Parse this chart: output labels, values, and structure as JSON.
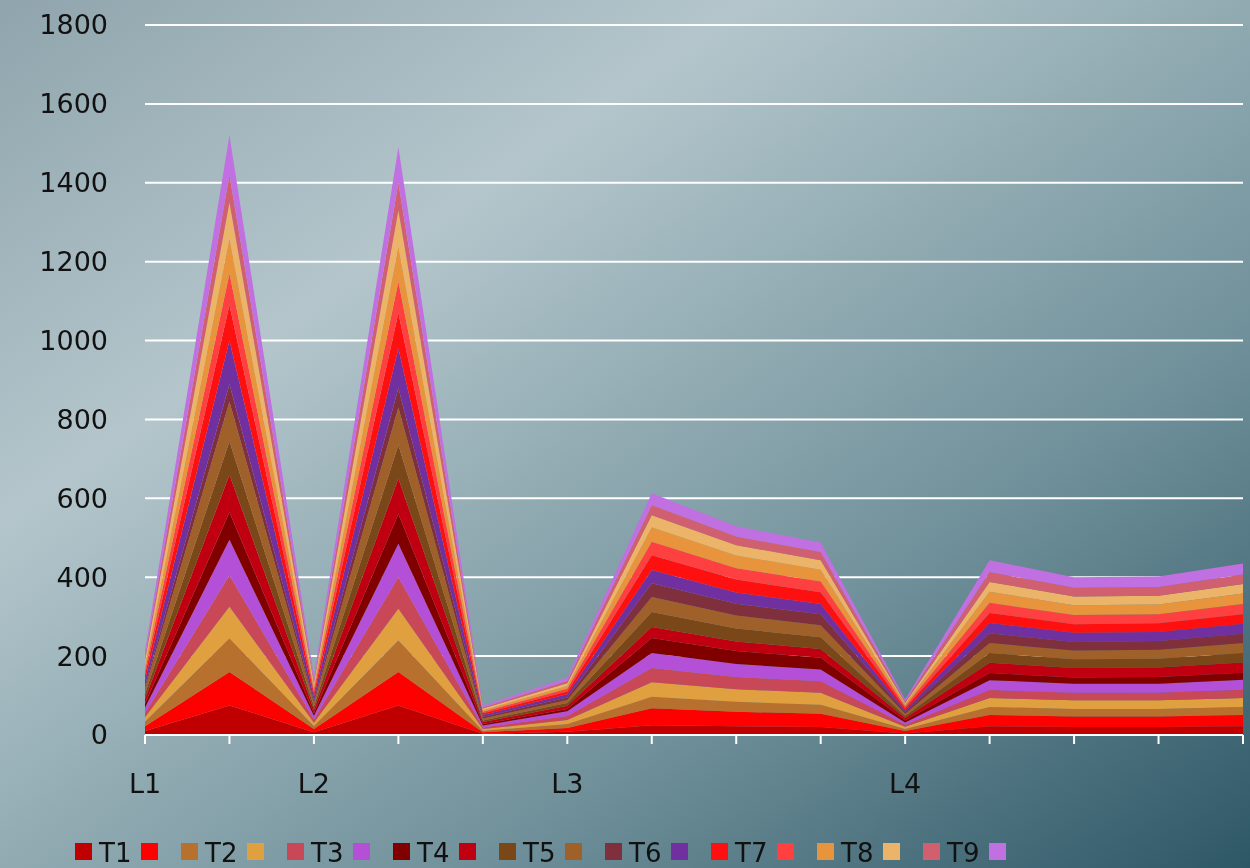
{
  "chart_data": {
    "type": "area",
    "stacked": true,
    "categories": [
      "L1",
      null,
      "L2",
      null,
      null,
      "L3",
      null,
      null,
      null,
      "L4",
      null,
      null,
      null,
      null
    ],
    "ylim": [
      0,
      1800
    ],
    "yticks": [
      0,
      200,
      400,
      600,
      800,
      1000,
      1200,
      1400,
      1600,
      1800
    ],
    "grid": "y",
    "legend": "bottom",
    "series": [
      {
        "name": "T1",
        "color": "#c00000",
        "values": [
          10,
          75,
          7,
          75,
          3,
          8,
          25,
          22,
          20,
          4,
          22,
          20,
          20,
          22
        ]
      },
      {
        "color": "#ff0000",
        "values": [
          12,
          85,
          8,
          85,
          4,
          10,
          43,
          37,
          34,
          6,
          29,
          27,
          27,
          29
        ]
      },
      {
        "name": "T2",
        "color": "#b8702e",
        "values": [
          12,
          85,
          8,
          80,
          4,
          10,
          29,
          25,
          23,
          5,
          20,
          19,
          19,
          20
        ]
      },
      {
        "color": "#e0a040",
        "values": [
          11,
          80,
          8,
          80,
          4,
          10,
          37,
          32,
          30,
          6,
          23,
          22,
          22,
          23
        ]
      },
      {
        "name": "T3",
        "color": "#c84858",
        "values": [
          11,
          80,
          8,
          80,
          4,
          10,
          36,
          31,
          29,
          5,
          20,
          19,
          19,
          21
        ]
      },
      {
        "color": "#b450d8",
        "values": [
          13,
          90,
          9,
          85,
          5,
          12,
          38,
          33,
          30,
          6,
          25,
          23,
          23,
          25
        ]
      },
      {
        "name": "T4",
        "color": "#800000",
        "values": [
          10,
          70,
          7,
          75,
          4,
          6,
          38,
          33,
          30,
          5,
          18,
          16,
          17,
          18
        ]
      },
      {
        "color": "#c00010",
        "values": [
          13,
          95,
          9,
          90,
          5,
          8,
          28,
          24,
          22,
          6,
          26,
          24,
          24,
          26
        ]
      },
      {
        "name": "T5",
        "color": "#7a4818",
        "values": [
          12,
          85,
          8,
          85,
          4,
          7,
          38,
          33,
          30,
          5,
          25,
          22,
          22,
          24
        ]
      },
      {
        "color": "#a0602a",
        "values": [
          14,
          100,
          10,
          95,
          5,
          8,
          38,
          33,
          30,
          6,
          25,
          22,
          23,
          25
        ]
      },
      {
        "name": "T6",
        "color": "#80303c",
        "values": [
          6,
          45,
          5,
          50,
          4,
          6,
          35,
          30,
          28,
          4,
          25,
          22,
          22,
          24
        ]
      },
      {
        "color": "#7030a0",
        "values": [
          15,
          110,
          10,
          100,
          5,
          8,
          33,
          28,
          26,
          5,
          26,
          23,
          23,
          25
        ]
      },
      {
        "name": "T7",
        "color": "#ff1010",
        "values": [
          13,
          90,
          9,
          90,
          4,
          7,
          38,
          33,
          30,
          5,
          25,
          22,
          22,
          24
        ]
      },
      {
        "color": "#ff4040",
        "values": [
          11,
          80,
          8,
          80,
          4,
          7,
          34,
          29,
          27,
          5,
          26,
          23,
          23,
          26
        ]
      },
      {
        "name": "T8",
        "color": "#e8943c",
        "values": [
          13,
          90,
          9,
          90,
          4,
          7,
          37,
          32,
          30,
          5,
          28,
          25,
          25,
          27
        ]
      },
      {
        "color": "#ecb468",
        "values": [
          13,
          90,
          9,
          90,
          4,
          7,
          30,
          26,
          24,
          4,
          25,
          22,
          22,
          24
        ]
      },
      {
        "name": "T9",
        "color": "#d06070",
        "values": [
          10,
          70,
          7,
          70,
          3,
          6,
          26,
          22,
          21,
          3,
          25,
          22,
          22,
          24
        ]
      },
      {
        "color": "#c070e0",
        "values": [
          14,
          100,
          10,
          90,
          5,
          8,
          30,
          26,
          24,
          5,
          30,
          27,
          27,
          28
        ]
      }
    ]
  }
}
